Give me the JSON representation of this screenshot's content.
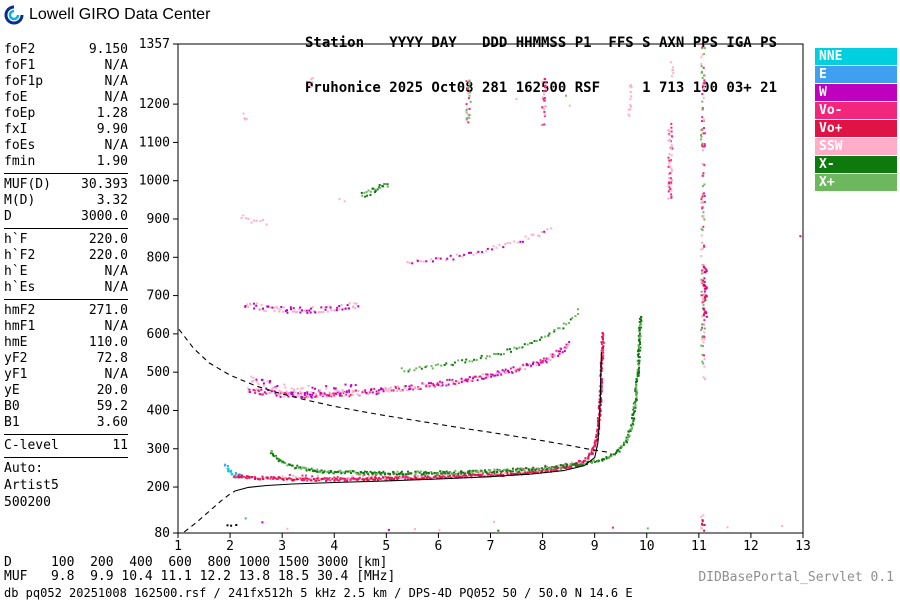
{
  "header": {
    "brand": "Lowell GIRO Data Center",
    "station_line1": "Station   YYYY DAY   DDD HHMMSS P1  FFS S AXN PPS IGA PS",
    "station_line2": "Pruhonice 2025 Oct08 281 162500 RSF     1 713 100 03+ 21"
  },
  "params": {
    "groups": [
      {
        "rows": [
          [
            "foF2",
            "9.150"
          ],
          [
            "foF1",
            "N/A"
          ],
          [
            "foF1p",
            "N/A"
          ],
          [
            "foE",
            "N/A"
          ],
          [
            "foEp",
            "1.28"
          ],
          [
            "fxI",
            "9.90"
          ],
          [
            "foEs",
            "N/A"
          ],
          [
            "fmin",
            "1.90"
          ]
        ]
      },
      {
        "rows": [
          [
            "MUF(D)",
            "30.393"
          ],
          [
            "M(D)",
            "3.32"
          ],
          [
            "D",
            "3000.0"
          ]
        ]
      },
      {
        "rows": [
          [
            "h`F",
            "220.0"
          ],
          [
            "h`F2",
            "220.0"
          ],
          [
            "h`E",
            "N/A"
          ],
          [
            "h`Es",
            "N/A"
          ]
        ]
      },
      {
        "rows": [
          [
            "hmF2",
            "271.0"
          ],
          [
            "hmF1",
            "N/A"
          ],
          [
            "hmE",
            "110.0"
          ],
          [
            "yF2",
            "72.8"
          ],
          [
            "yF1",
            "N/A"
          ],
          [
            "yE",
            "20.0"
          ],
          [
            "B0",
            "59.2"
          ],
          [
            "B1",
            "3.60"
          ]
        ]
      },
      {
        "rows": [
          [
            "C-level",
            "11"
          ]
        ]
      }
    ],
    "auto_lines": [
      "Auto:",
      "Artist5",
      "500200"
    ]
  },
  "legend": {
    "items": [
      {
        "label": "NNE",
        "color": "#00cfe0"
      },
      {
        "label": "E",
        "color": "#3f9ff0"
      },
      {
        "label": "W",
        "color": "#bf00bf"
      },
      {
        "label": "Vo-",
        "color": "#f2267d"
      },
      {
        "label": "Vo+",
        "color": "#e01345"
      },
      {
        "label": "SSW",
        "color": "#ffaec9"
      },
      {
        "label": "X-",
        "color": "#0e7a0e"
      },
      {
        "label": "X+",
        "color": "#6db85f"
      }
    ]
  },
  "bottom_table": {
    "d_label": "D",
    "muf_label": "MUF",
    "distances_km": [
      100,
      200,
      400,
      600,
      800,
      1000,
      1500,
      3000
    ],
    "muf_mhz": [
      "9.8",
      "9.9",
      "10.4",
      "11.1",
      "12.2",
      "13.8",
      "18.5",
      "30.4"
    ],
    "d_unit": "[km]",
    "muf_unit": "[MHz]"
  },
  "footer": {
    "status": "db pq052 20251008 162500.rsf / 241fx512h 5 kHz 2.5 km / DPS-4D PQ052 50 / 50.0 N 14.6 E",
    "servlet": "DIDBasePortal_Servlet 0.1"
  },
  "chart_data": {
    "type": "scatter",
    "title": "",
    "xlabel": "[MHz]",
    "ylabel": "[km]",
    "xlim": [
      1,
      13
    ],
    "ylim": [
      80,
      1357
    ],
    "x_ticks": [
      1,
      2,
      3,
      4,
      5,
      6,
      7,
      8,
      9,
      10,
      11,
      12,
      13
    ],
    "y_ticks": [
      80,
      200,
      300,
      400,
      500,
      600,
      700,
      800,
      900,
      1000,
      1100,
      1200,
      1357
    ],
    "grid": false,
    "legend_position": "right",
    "colors": {
      "NNE": "#00cfe0",
      "E": "#3f9ff0",
      "W": "#bf00bf",
      "Vo-": "#f2267d",
      "Vo+": "#e01345",
      "SSW": "#ffaec9",
      "X-": "#0e7a0e",
      "X+": "#6db85f",
      "black": "#000000"
    },
    "traces": [
      {
        "name": "F-trace-leading-edge",
        "color": [
          "NNE",
          "E"
        ],
        "points": [
          [
            1.92,
            258
          ],
          [
            1.98,
            242
          ],
          [
            2.05,
            233
          ],
          [
            2.2,
            228
          ]
        ],
        "jitter": 2.5,
        "spacing": 2.2,
        "double": 2
      },
      {
        "name": "F-trace-O-mode",
        "color": [
          "Vo+",
          "Vo-",
          "Vo+"
        ],
        "points": [
          [
            2.1,
            229
          ],
          [
            2.5,
            224
          ],
          [
            3.0,
            221
          ],
          [
            3.5,
            220
          ],
          [
            4.0,
            220
          ],
          [
            4.5,
            221
          ],
          [
            5.0,
            222
          ],
          [
            5.5,
            224
          ],
          [
            6.0,
            226
          ],
          [
            6.5,
            228
          ],
          [
            7.0,
            231
          ],
          [
            7.5,
            235
          ],
          [
            8.0,
            241
          ],
          [
            8.3,
            247
          ],
          [
            8.6,
            256
          ],
          [
            8.8,
            268
          ],
          [
            8.95,
            287
          ],
          [
            9.03,
            318
          ],
          [
            9.08,
            368
          ],
          [
            9.11,
            430
          ],
          [
            9.13,
            495
          ],
          [
            9.15,
            560
          ],
          [
            9.16,
            600
          ]
        ],
        "jitter": 1.6,
        "spacing": 2.0,
        "double": 2
      },
      {
        "name": "F-trace-O-pink-fringe",
        "color": [
          "SSW",
          "Vo-"
        ],
        "points": [
          [
            3.0,
            227
          ],
          [
            4.0,
            226
          ],
          [
            5.0,
            228
          ],
          [
            6.0,
            232
          ],
          [
            6.5,
            234
          ],
          [
            7.0,
            237
          ],
          [
            7.5,
            242
          ],
          [
            8.0,
            249
          ],
          [
            8.4,
            257
          ],
          [
            8.7,
            267
          ]
        ],
        "jitter": 2.5,
        "spacing": 3.5,
        "double": 1
      },
      {
        "name": "F-trace-X-mode",
        "color": [
          "X-",
          "X-",
          "X+"
        ],
        "points": [
          [
            2.78,
            292
          ],
          [
            2.95,
            270
          ],
          [
            3.15,
            256
          ],
          [
            3.45,
            246
          ],
          [
            3.9,
            240
          ],
          [
            4.5,
            237
          ],
          [
            5.2,
            236
          ],
          [
            6.0,
            237
          ],
          [
            6.8,
            240
          ],
          [
            7.6,
            245
          ],
          [
            8.2,
            251
          ],
          [
            8.7,
            259
          ],
          [
            9.05,
            268
          ],
          [
            9.3,
            280
          ],
          [
            9.5,
            298
          ],
          [
            9.63,
            325
          ],
          [
            9.72,
            365
          ],
          [
            9.78,
            420
          ],
          [
            9.82,
            480
          ],
          [
            9.85,
            545
          ],
          [
            9.87,
            610
          ],
          [
            9.88,
            645
          ]
        ],
        "jitter": 1.6,
        "spacing": 2.2,
        "double": 2
      },
      {
        "name": "2F-trace-O-mode",
        "color": [
          "W",
          "Vo-",
          "SSW"
        ],
        "points": [
          [
            2.35,
            455
          ],
          [
            2.6,
            448
          ],
          [
            2.9,
            443
          ],
          [
            3.3,
            440
          ],
          [
            3.8,
            440
          ],
          [
            4.3,
            444
          ],
          [
            4.8,
            450
          ],
          [
            5.3,
            457
          ],
          [
            5.8,
            465
          ],
          [
            6.3,
            475
          ],
          [
            6.8,
            487
          ],
          [
            7.3,
            501
          ],
          [
            7.8,
            519
          ],
          [
            8.1,
            535
          ],
          [
            8.35,
            555
          ],
          [
            8.5,
            572
          ]
        ],
        "jitter": 2.8,
        "spacing": 2.2,
        "double": 2
      },
      {
        "name": "2F-spread-left",
        "color": [
          "SSW",
          "W"
        ],
        "points": [
          [
            2.4,
            478
          ],
          [
            2.7,
            466
          ],
          [
            3.0,
            458
          ],
          [
            3.4,
            452
          ],
          [
            3.9,
            452
          ],
          [
            4.4,
            458
          ]
        ],
        "jitter": 5,
        "spacing": 2.6,
        "double": 2
      },
      {
        "name": "2F-trace-X-mode",
        "color": [
          "X-",
          "X+"
        ],
        "points": [
          [
            5.3,
            505
          ],
          [
            5.9,
            515
          ],
          [
            6.5,
            528
          ],
          [
            7.0,
            543
          ],
          [
            7.5,
            562
          ],
          [
            8.0,
            588
          ],
          [
            8.3,
            610
          ],
          [
            8.55,
            638
          ],
          [
            8.7,
            662
          ]
        ],
        "jitter": 2,
        "spacing": 2.8,
        "double": 1
      },
      {
        "name": "3F-trace",
        "color": [
          "W",
          "SSW"
        ],
        "points": [
          [
            2.3,
            678
          ],
          [
            2.65,
            668
          ],
          [
            3.0,
            663
          ],
          [
            3.4,
            661
          ],
          [
            3.8,
            664
          ],
          [
            4.2,
            670
          ],
          [
            4.45,
            676
          ]
        ],
        "jitter": 3,
        "spacing": 2.6,
        "double": 2
      },
      {
        "name": "multiple-trace-high",
        "color": [
          "SSW",
          "W"
        ],
        "points": [
          [
            5.4,
            782
          ],
          [
            5.9,
            792
          ],
          [
            6.4,
            803
          ],
          [
            6.9,
            817
          ],
          [
            7.4,
            835
          ],
          [
            7.9,
            858
          ],
          [
            8.15,
            872
          ]
        ],
        "jitter": 2.5,
        "spacing": 3,
        "double": 1
      },
      {
        "name": "green-patch-1000km",
        "color": [
          "X+",
          "X-"
        ],
        "points": [
          [
            4.55,
            962
          ],
          [
            4.72,
            972
          ],
          [
            4.88,
            982
          ],
          [
            5.02,
            992
          ]
        ],
        "jitter": 3,
        "spacing": 2.5,
        "double": 2
      },
      {
        "name": "4F-patch-left",
        "color": [
          "SSW"
        ],
        "points": [
          [
            2.2,
            905
          ],
          [
            2.45,
            894
          ],
          [
            2.7,
            890
          ]
        ],
        "jitter": 3,
        "spacing": 3,
        "double": 1
      }
    ],
    "columns": [
      {
        "x": 6.57,
        "range": [
          1150,
          1262
        ],
        "colors": [
          "SSW",
          "X+",
          "Vo-"
        ],
        "n": 26
      },
      {
        "x": 8.03,
        "range": [
          1140,
          1268
        ],
        "colors": [
          "SSW",
          "Vo-"
        ],
        "n": 30
      },
      {
        "x": 9.68,
        "range": [
          1160,
          1252
        ],
        "colors": [
          "SSW"
        ],
        "n": 12
      },
      {
        "x": 10.45,
        "range": [
          945,
          1155
        ],
        "colors": [
          "Vo-",
          "SSW"
        ],
        "n": 55
      },
      {
        "x": 10.48,
        "range": [
          1262,
          1310
        ],
        "colors": [
          "SSW"
        ],
        "n": 6
      },
      {
        "x": 11.08,
        "range": [
          480,
          1352
        ],
        "colors": [
          "SSW",
          "Vo-",
          "X+"
        ],
        "n": 150
      },
      {
        "x": 11.12,
        "range": [
          640,
          780
        ],
        "colors": [
          "Vo+",
          "W"
        ],
        "n": 30
      },
      {
        "x": 11.08,
        "range": [
          82,
          128
        ],
        "colors": [
          "Vo+",
          "SSW"
        ],
        "n": 10
      },
      {
        "x": 3.55,
        "range": [
          1238,
          1268
        ],
        "colors": [
          "SSW"
        ],
        "n": 5
      },
      {
        "x": 2.28,
        "range": [
          1150,
          1176
        ],
        "colors": [
          "SSW"
        ],
        "n": 4
      }
    ],
    "speckles": [
      [
        2.62,
        108,
        "W"
      ],
      [
        1.95,
        100,
        "black"
      ],
      [
        2.02,
        99,
        "black"
      ],
      [
        2.12,
        101,
        "black"
      ],
      [
        3.1,
        91,
        "SSW"
      ],
      [
        5.05,
        88,
        "W"
      ],
      [
        5.55,
        90,
        "SSW"
      ],
      [
        6.02,
        87,
        "SSW"
      ],
      [
        7.15,
        86,
        "X-"
      ],
      [
        7.07,
        109,
        "SSW"
      ],
      [
        7.5,
        1213,
        "SSW"
      ],
      [
        6.62,
        1206,
        "X+"
      ],
      [
        8.45,
        1222,
        "X+"
      ],
      [
        8.52,
        1196,
        "SSW"
      ],
      [
        12.95,
        855,
        "Vo+"
      ],
      [
        12.6,
        98,
        "SSW"
      ],
      [
        9.35,
        94,
        "Vo-"
      ],
      [
        4.1,
        952,
        "SSW"
      ],
      [
        4.2,
        946,
        "SSW"
      ],
      [
        2.3,
        118,
        "E"
      ],
      [
        10.02,
        92,
        "X+"
      ],
      [
        11.55,
        95,
        "SSW"
      ]
    ],
    "lines": [
      {
        "name": "profile-extrapolation",
        "style": "dashed",
        "points": [
          [
            1.12,
            83
          ],
          [
            1.35,
            107
          ],
          [
            1.6,
            137
          ],
          [
            1.82,
            163
          ],
          [
            2.0,
            182
          ],
          [
            2.1,
            190
          ]
        ]
      },
      {
        "name": "transmission-curve-3000km",
        "style": "dashed",
        "points": [
          [
            1.02,
            612
          ],
          [
            1.3,
            562
          ],
          [
            1.6,
            524
          ],
          [
            2.0,
            492
          ],
          [
            2.5,
            464
          ],
          [
            3.0,
            443
          ],
          [
            3.5,
            426
          ],
          [
            4.0,
            411
          ],
          [
            4.5,
            398
          ],
          [
            5.0,
            386
          ],
          [
            5.5,
            375
          ],
          [
            6.0,
            364
          ],
          [
            6.5,
            353
          ],
          [
            7.0,
            343
          ],
          [
            7.5,
            332
          ],
          [
            8.0,
            321
          ],
          [
            8.5,
            309
          ],
          [
            8.85,
            300
          ],
          [
            9.25,
            291
          ]
        ]
      },
      {
        "name": "true-height-profile",
        "style": "solid",
        "points": [
          [
            2.1,
            190
          ],
          [
            2.35,
            199
          ],
          [
            2.7,
            204
          ],
          [
            3.2,
            208
          ],
          [
            4.0,
            212
          ],
          [
            5.0,
            216
          ],
          [
            6.0,
            221
          ],
          [
            7.0,
            227
          ],
          [
            7.8,
            234
          ],
          [
            8.4,
            243
          ],
          [
            8.8,
            256
          ],
          [
            9.0,
            277
          ],
          [
            9.06,
            314
          ],
          [
            9.09,
            370
          ],
          [
            9.11,
            440
          ],
          [
            9.12,
            505
          ],
          [
            9.13,
            553
          ]
        ]
      }
    ]
  }
}
